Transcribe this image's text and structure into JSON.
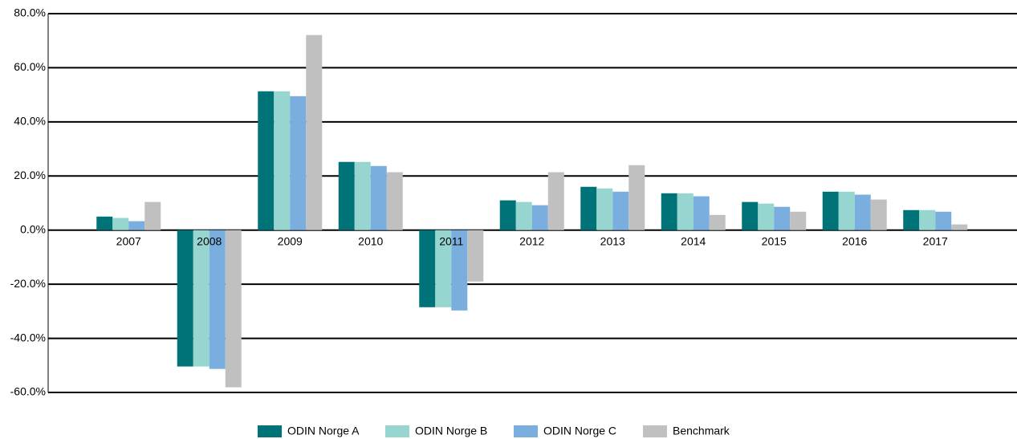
{
  "chart_data": {
    "type": "bar",
    "categories": [
      "2007",
      "2008",
      "2009",
      "2010",
      "2011",
      "2012",
      "2013",
      "2014",
      "2015",
      "2016",
      "2017"
    ],
    "series": [
      {
        "name": "ODIN Norge A",
        "color": "#007378",
        "values": [
          5.0,
          -50.4,
          51.3,
          25.2,
          -28.5,
          11.0,
          16.0,
          13.6,
          10.4,
          14.2,
          7.4
        ]
      },
      {
        "name": "ODIN Norge B",
        "color": "#96d5d0",
        "values": [
          4.5,
          -50.4,
          51.3,
          25.2,
          -28.5,
          10.4,
          15.4,
          13.6,
          9.8,
          14.2,
          7.4
        ]
      },
      {
        "name": "ODIN Norge C",
        "color": "#7aaedf",
        "values": [
          3.3,
          -51.3,
          49.5,
          23.7,
          -29.7,
          9.2,
          14.2,
          12.5,
          8.6,
          13.1,
          6.8
        ]
      },
      {
        "name": "Benchmark",
        "color": "#c0c0c0",
        "values": [
          10.4,
          -58.1,
          72.1,
          21.4,
          -19.0,
          21.4,
          24.0,
          5.6,
          6.8,
          11.3,
          2.1
        ]
      }
    ],
    "ylim": [
      -60,
      80
    ],
    "yticks": [
      {
        "value": -60,
        "label": "-60.0%"
      },
      {
        "value": -40,
        "label": "-40.0%"
      },
      {
        "value": -20,
        "label": "-20.0%"
      },
      {
        "value": 0,
        "label": "0.0%"
      },
      {
        "value": 20,
        "label": "20.0%"
      },
      {
        "value": 40,
        "label": "40.0%"
      },
      {
        "value": 60,
        "label": "60.0%"
      },
      {
        "value": 80,
        "label": "80.0%"
      }
    ],
    "grid": true,
    "legend": "bottom"
  }
}
